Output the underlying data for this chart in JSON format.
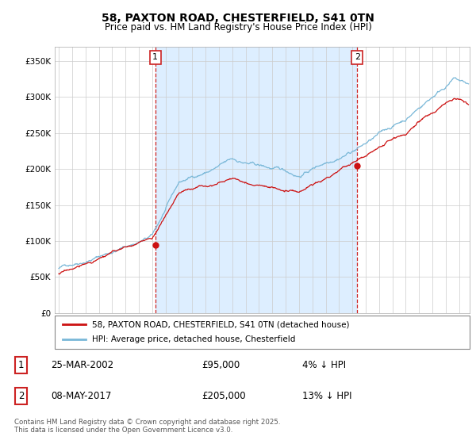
{
  "title": "58, PAXTON ROAD, CHESTERFIELD, S41 0TN",
  "subtitle": "Price paid vs. HM Land Registry's House Price Index (HPI)",
  "legend_line1": "58, PAXTON ROAD, CHESTERFIELD, S41 0TN (detached house)",
  "legend_line2": "HPI: Average price, detached house, Chesterfield",
  "annotation1_label": "1",
  "annotation1_date": "25-MAR-2002",
  "annotation1_price": "£95,000",
  "annotation1_hpi": "4% ↓ HPI",
  "annotation2_label": "2",
  "annotation2_date": "08-MAY-2017",
  "annotation2_price": "£205,000",
  "annotation2_hpi": "13% ↓ HPI",
  "purchase1_year": 2002.23,
  "purchase1_value": 95000,
  "purchase2_year": 2017.36,
  "purchase2_value": 205000,
  "hpi_color": "#7ab8d8",
  "price_color": "#cc1111",
  "annotation_box_color": "#cc2222",
  "shade_color": "#ddeeff",
  "ylim_min": 0,
  "ylim_max": 370000,
  "xmin": 1994.7,
  "xmax": 2025.8,
  "footer": "Contains HM Land Registry data © Crown copyright and database right 2025.\nThis data is licensed under the Open Government Licence v3.0.",
  "background_color": "#ffffff",
  "grid_color": "#cccccc"
}
